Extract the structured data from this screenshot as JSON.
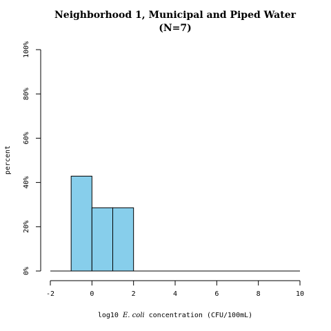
{
  "chart_data": {
    "type": "bar",
    "title": "Neighborhood 1, Municipal and Piped Water",
    "subtitle": "(N=7)",
    "xlabel_parts": [
      "log10 ",
      "E. coli",
      " concentration (CFU/100mL)"
    ],
    "ylabel": "percent",
    "bins": [
      {
        "x0": -1,
        "x1": 0,
        "value": 42.86
      },
      {
        "x0": 0,
        "x1": 1,
        "value": 28.57
      },
      {
        "x0": 1,
        "x1": 2,
        "value": 28.57
      }
    ],
    "baseline_range": [
      -2,
      10
    ],
    "xlim": [
      -2,
      10
    ],
    "ylim": [
      0,
      100
    ],
    "xticks": [
      -2,
      0,
      2,
      4,
      6,
      8,
      10
    ],
    "xtick_labels": [
      "-2",
      "0",
      "2",
      "4",
      "6",
      "8",
      "10"
    ],
    "yticks": [
      0,
      20,
      40,
      60,
      80,
      100
    ],
    "ytick_labels": [
      "0%",
      "20%",
      "40%",
      "60%",
      "80%",
      "100%"
    ],
    "bar_color": "#87ceeb",
    "grid": false
  }
}
